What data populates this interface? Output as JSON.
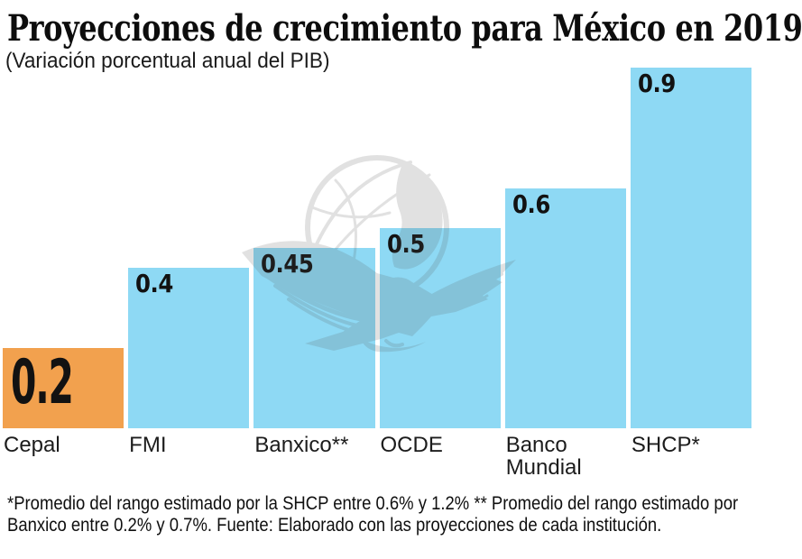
{
  "page": {
    "title": "Proyecciones de crecimiento para México en 2019",
    "subtitle": "(Variación porcentual anual del PIB)",
    "footnote": "*Promedio del rango estimado por la SHCP entre 0.6% y 1.2% ** Promedio del rango estimado por Banxico entre 0.2% y 0.7%. Fuente: Elaborado con las proyecciones de cada institución.",
    "watermark_icon": "el-universal-eagle-globe-watermark"
  },
  "colors": {
    "bar_default": "#8ED9F4",
    "bar_highlight": "#F2A14E",
    "text": "#111111",
    "watermark_gray": "#555555"
  },
  "chart_data": {
    "type": "bar",
    "title": "Proyecciones de crecimiento para México en 2019",
    "subtitle": "(Variación porcentual anual del PIB)",
    "categories": [
      "Cepal",
      "FMI",
      "Banxico**",
      "OCDE",
      "Banco Mundial",
      "SHCP*"
    ],
    "values": [
      0.2,
      0.4,
      0.45,
      0.5,
      0.6,
      0.9
    ],
    "value_labels": [
      "0.2",
      "0.4",
      "0.45",
      "0.5",
      "0.6",
      "0.9"
    ],
    "bar_colors": [
      "#F2A14E",
      "#8ED9F4",
      "#8ED9F4",
      "#8ED9F4",
      "#8ED9F4",
      "#8ED9F4"
    ],
    "highlighted_category": "Cepal",
    "xlabel": "",
    "ylabel": "",
    "ylim": [
      0,
      1.0
    ],
    "grid": false,
    "legend": false,
    "axis_lines": false,
    "value_label_position": "inside-top-left",
    "footnote": "*Promedio del rango estimado por la SHCP entre 0.6% y 1.2% ** Promedio del rango estimado por Banxico entre 0.2% y 0.7%. Fuente: Elaborado con las proyecciones de cada institución."
  }
}
